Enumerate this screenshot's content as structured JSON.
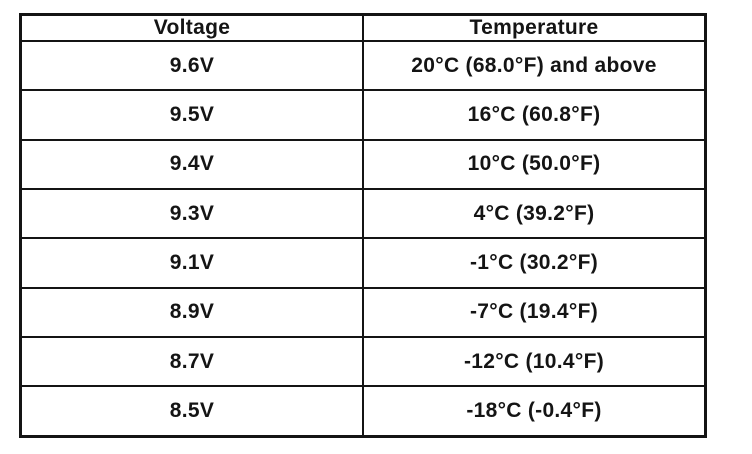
{
  "document": {
    "type": "scanned-table",
    "colors": {
      "background": "#ffffff",
      "border": "#141414",
      "text": "#141414"
    },
    "table": {
      "headers": [
        "Voltage",
        "Temperature"
      ],
      "rows": [
        [
          "9.6V",
          "20°C (68.0°F) and above"
        ],
        [
          "9.5V",
          "16°C (60.8°F)"
        ],
        [
          "9.4V",
          "10°C (50.0°F)"
        ],
        [
          "9.3V",
          "4°C (39.2°F)"
        ],
        [
          "9.1V",
          "-1°C (30.2°F)"
        ],
        [
          "8.9V",
          "-7°C (19.4°F)"
        ],
        [
          "8.7V",
          "-12°C (10.4°F)"
        ],
        [
          "8.5V",
          "-18°C (-0.4°F)"
        ]
      ]
    }
  }
}
